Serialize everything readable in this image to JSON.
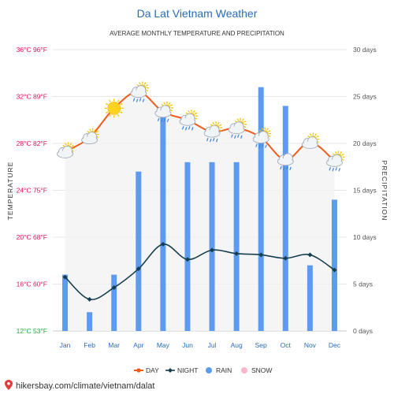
{
  "chart_data": {
    "type": "bar+line",
    "title": "Da Lat Vietnam Weather",
    "subtitle": "AVERAGE MONTHLY TEMPERATURE AND PRECIPITATION",
    "categories": [
      "Jan",
      "Feb",
      "Mar",
      "Apr",
      "May",
      "Jun",
      "Jul",
      "Aug",
      "Sep",
      "Oct",
      "Nov",
      "Dec"
    ],
    "left_axis": {
      "label": "TEMPERATURE",
      "ylim": [
        12,
        36
      ],
      "ticks": [
        {
          "value": 36,
          "label": "36°C 96°F",
          "color": "#e0105f"
        },
        {
          "value": 32,
          "label": "32°C 89°F",
          "color": "#e0105f"
        },
        {
          "value": 28,
          "label": "28°C 82°F",
          "color": "#e0105f"
        },
        {
          "value": 24,
          "label": "24°C 75°F",
          "color": "#e0105f"
        },
        {
          "value": 20,
          "label": "20°C 68°F",
          "color": "#e0105f"
        },
        {
          "value": 16,
          "label": "16°C 60°F",
          "color": "#e0105f"
        },
        {
          "value": 12,
          "label": "12°C 53°F",
          "color": "#22a83a"
        }
      ]
    },
    "right_axis": {
      "label": "PRECIPITATION",
      "ylim": [
        0,
        30
      ],
      "ticks": [
        {
          "value": 30,
          "label": "30 days"
        },
        {
          "value": 25,
          "label": "25 days"
        },
        {
          "value": 20,
          "label": "20 days"
        },
        {
          "value": 15,
          "label": "15 days"
        },
        {
          "value": 10,
          "label": "10 days"
        },
        {
          "value": 5,
          "label": "5 days"
        },
        {
          "value": 0,
          "label": "0 days"
        }
      ]
    },
    "series": [
      {
        "name": "DAY",
        "kind": "line",
        "axis": "left",
        "color": "#f05a1a",
        "values": [
          27.3,
          28.5,
          31.0,
          32.4,
          30.7,
          30.0,
          29.0,
          29.3,
          28.5,
          26.6,
          28.1,
          26.5
        ]
      },
      {
        "name": "NIGHT",
        "kind": "line",
        "axis": "left",
        "color": "#173e4f",
        "values": [
          16.6,
          14.7,
          15.7,
          17.3,
          19.4,
          18.1,
          18.9,
          18.6,
          18.5,
          18.2,
          18.5,
          17.2
        ]
      },
      {
        "name": "RAIN",
        "kind": "bar",
        "axis": "right",
        "color": "#5d9bf0",
        "values": [
          6,
          2,
          6,
          17,
          23,
          18,
          18,
          18,
          26,
          24,
          7,
          14
        ]
      },
      {
        "name": "SNOW",
        "kind": "bar",
        "axis": "right",
        "color": "#f6b8c8",
        "values": [
          0,
          0,
          0,
          0,
          0,
          0,
          0,
          0,
          0,
          0,
          0,
          0
        ]
      }
    ],
    "weather_icons": [
      "sun-cloud",
      "sun-cloud",
      "sun",
      "sun-rain-cloud",
      "sun-rain-cloud",
      "sun-rain-cloud",
      "sun-rain-cloud",
      "sun-rain-cloud",
      "sun-rain-cloud",
      "rain-cloud",
      "sun-cloud",
      "sun-rain-cloud"
    ],
    "grid": true,
    "legend_position": "bottom"
  },
  "source": "hikersbay.com/climate/vietnam/dalat",
  "colors": {
    "grid": "#e6e6e6",
    "title": "#2a6bb5",
    "month_label": "#2a6bb5"
  }
}
